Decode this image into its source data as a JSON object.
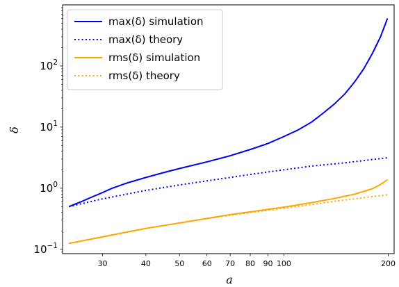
{
  "chart_data": {
    "type": "line",
    "xlabel": "a",
    "ylabel": "δ",
    "xscale": "log",
    "yscale": "log",
    "xlim": [
      23,
      208
    ],
    "ylim": [
      0.085,
      1000
    ],
    "x_ticks": [
      {
        "value": 30,
        "label": "30"
      },
      {
        "value": 40,
        "label": "40"
      },
      {
        "value": 50,
        "label": "50"
      },
      {
        "value": 60,
        "label": "60"
      },
      {
        "value": 70,
        "label": "70"
      },
      {
        "value": 80,
        "label": "80"
      },
      {
        "value": 90,
        "label": "90"
      },
      {
        "value": 100,
        "label": "100"
      },
      {
        "value": 200,
        "label": "200"
      }
    ],
    "y_ticks": [
      {
        "value": 0.1,
        "base": "10",
        "exp": "−1"
      },
      {
        "value": 1,
        "base": "10",
        "exp": "0"
      },
      {
        "value": 10,
        "base": "10",
        "exp": "1"
      },
      {
        "value": 100,
        "base": "10",
        "exp": "2"
      }
    ],
    "legend_position": "top-left",
    "series": [
      {
        "name": "max(δ) simulation",
        "color": "#0000ee",
        "style": "solid",
        "x": [
          24,
          26,
          28,
          30,
          32,
          35,
          40,
          45,
          50,
          60,
          70,
          80,
          90,
          100,
          110,
          120,
          130,
          140,
          150,
          160,
          170,
          180,
          190,
          199
        ],
        "y": [
          0.5,
          0.6,
          0.72,
          0.85,
          1.0,
          1.2,
          1.5,
          1.8,
          2.1,
          2.7,
          3.4,
          4.3,
          5.4,
          7.0,
          9.0,
          12,
          17,
          24,
          35,
          55,
          90,
          160,
          300,
          600
        ]
      },
      {
        "name": "max(δ) theory",
        "color": "#0000ee",
        "style": "dotted",
        "x": [
          24,
          30,
          40,
          50,
          60,
          70,
          80,
          100,
          120,
          150,
          180,
          199
        ],
        "y": [
          0.5,
          0.67,
          0.92,
          1.13,
          1.32,
          1.5,
          1.68,
          2.0,
          2.3,
          2.6,
          2.95,
          3.15
        ]
      },
      {
        "name": "rms(δ) simulation",
        "color": "#ffa500",
        "style": "solid",
        "x": [
          24,
          30,
          35,
          40,
          50,
          60,
          70,
          80,
          100,
          120,
          140,
          160,
          180,
          190,
          199
        ],
        "y": [
          0.125,
          0.16,
          0.19,
          0.22,
          0.27,
          0.32,
          0.37,
          0.41,
          0.49,
          0.58,
          0.68,
          0.8,
          0.98,
          1.15,
          1.38
        ]
      },
      {
        "name": "rms(δ) theory",
        "color": "#ffa500",
        "style": "dotted",
        "x": [
          24,
          30,
          35,
          40,
          50,
          60,
          70,
          80,
          100,
          120,
          140,
          160,
          180,
          199
        ],
        "y": [
          0.125,
          0.16,
          0.19,
          0.22,
          0.27,
          0.32,
          0.36,
          0.4,
          0.47,
          0.54,
          0.61,
          0.67,
          0.73,
          0.78
        ]
      }
    ]
  }
}
